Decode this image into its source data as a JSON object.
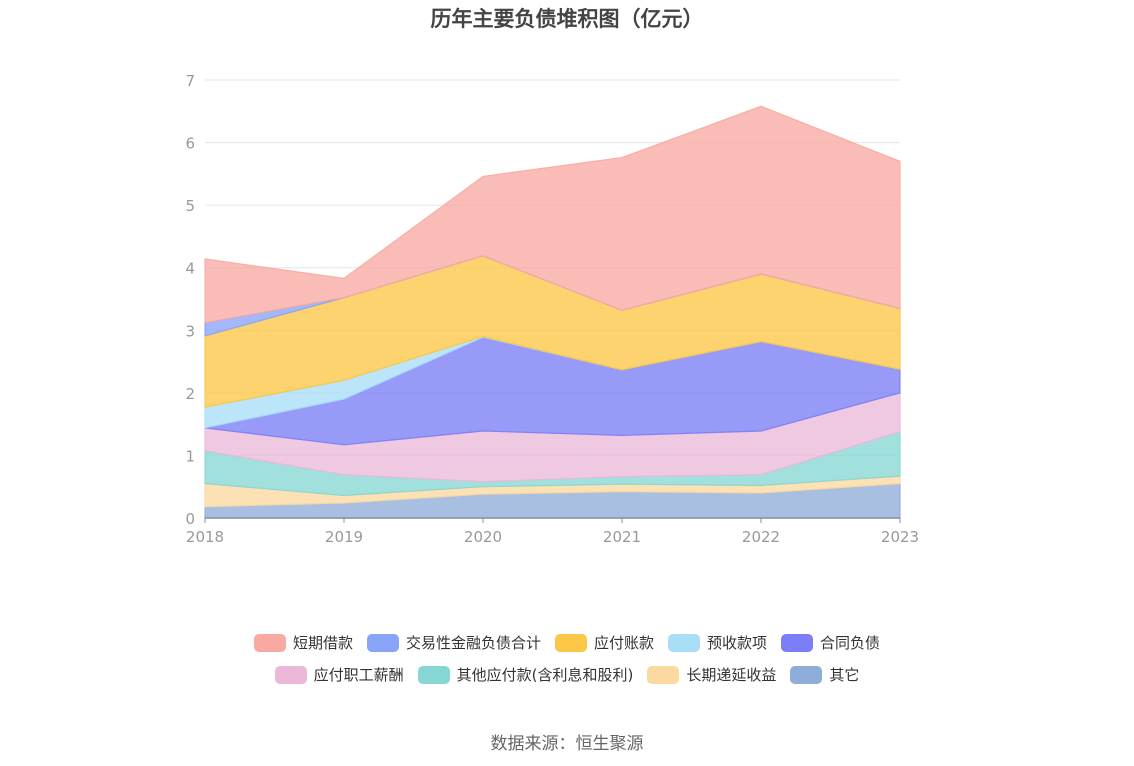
{
  "title": "历年主要负债堆积图（亿元）",
  "source": "数据来源：恒生聚源",
  "colors": {
    "短期借款": "#f8a9a2",
    "交易性金融负债合计": "#88a4f8",
    "应付账款": "#fbc746",
    "预收款项": "#a9def7",
    "合同负债": "#7b7ef5",
    "应付职工薪酬": "#ebb8da",
    "其他应付款(含利息和股利)": "#86d7d4",
    "长期递延收益": "#fbd9a0",
    "其它": "#8fadd9"
  },
  "chart_data": {
    "type": "area",
    "stacked": true,
    "title": "历年主要负债堆积图（亿元）",
    "x": [
      "2018",
      "2019",
      "2020",
      "2021",
      "2022",
      "2023"
    ],
    "ylim": [
      0,
      7
    ],
    "yticks": [
      "0",
      "1",
      "2",
      "3",
      "4",
      "5",
      "6",
      "7"
    ],
    "grid": true,
    "legend_position": "bottom",
    "series": [
      {
        "name": "其它",
        "values": [
          0.18,
          0.24,
          0.38,
          0.42,
          0.4,
          0.55
        ]
      },
      {
        "name": "长期递延收益",
        "values": [
          0.37,
          0.12,
          0.12,
          0.12,
          0.12,
          0.12
        ]
      },
      {
        "name": "其他应付款(含利息和股利)",
        "values": [
          0.52,
          0.33,
          0.08,
          0.12,
          0.17,
          0.71
        ]
      },
      {
        "name": "应付职工薪酬",
        "values": [
          0.37,
          0.48,
          0.81,
          0.66,
          0.7,
          0.62
        ]
      },
      {
        "name": "合同负债",
        "values": [
          0.0,
          0.73,
          1.5,
          1.05,
          1.43,
          0.38
        ]
      },
      {
        "name": "预收款项",
        "values": [
          0.33,
          0.3,
          0.01,
          0.0,
          0.0,
          0.0
        ]
      },
      {
        "name": "应付账款",
        "values": [
          1.14,
          1.32,
          1.29,
          0.95,
          1.08,
          0.97
        ]
      },
      {
        "name": "交易性金融负债合计",
        "values": [
          0.21,
          0.0,
          0.0,
          0.0,
          0.0,
          0.0
        ]
      },
      {
        "name": "短期借款",
        "values": [
          1.02,
          0.31,
          1.27,
          2.44,
          2.68,
          2.35
        ]
      }
    ],
    "legend_order": [
      "短期借款",
      "交易性金融负债合计",
      "应付账款",
      "预收款项",
      "合同负债",
      "应付职工薪酬",
      "其他应付款(含利息和股利)",
      "长期递延收益",
      "其它"
    ]
  }
}
